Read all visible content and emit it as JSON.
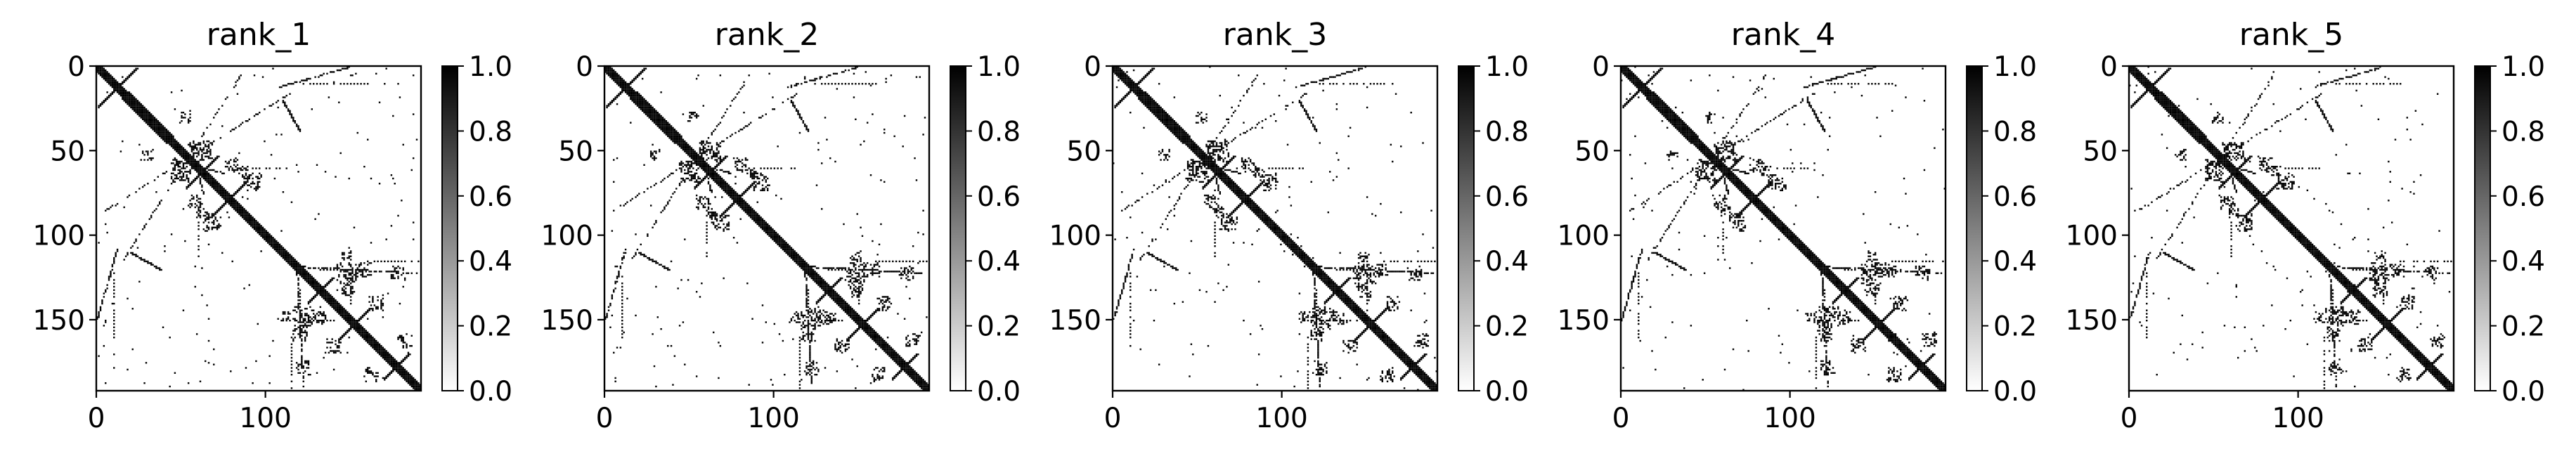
{
  "figure": {
    "background": "#ffffff",
    "axis_color": "#000000"
  },
  "chart_data": [
    {
      "type": "heatmap",
      "title": "rank_1",
      "xlim": [
        0,
        192
      ],
      "ylim": [
        192,
        0
      ],
      "xticks": [
        0,
        100
      ],
      "yticks": [
        0,
        50,
        100,
        150
      ],
      "xlabel": "",
      "ylabel": "",
      "colorbar": {
        "min": 0.0,
        "max": 1.0,
        "ticks": [
          "0.0",
          "0.2",
          "0.4",
          "0.6",
          "0.8",
          "1.0"
        ],
        "colormap": "gray_r"
      },
      "note": "binary contact map; cells near the diagonal and along cross-diagonal bands are 1, others 0"
    },
    {
      "type": "heatmap",
      "title": "rank_2",
      "xlim": [
        0,
        192
      ],
      "ylim": [
        192,
        0
      ],
      "xticks": [
        0,
        100
      ],
      "yticks": [
        0,
        50,
        100,
        150
      ],
      "xlabel": "",
      "ylabel": "",
      "colorbar": {
        "min": 0.0,
        "max": 1.0,
        "ticks": [
          "0.0",
          "0.2",
          "0.4",
          "0.6",
          "0.8",
          "1.0"
        ],
        "colormap": "gray_r"
      }
    },
    {
      "type": "heatmap",
      "title": "rank_3",
      "xlim": [
        0,
        192
      ],
      "ylim": [
        192,
        0
      ],
      "xticks": [
        0,
        100
      ],
      "yticks": [
        0,
        50,
        100,
        150
      ],
      "xlabel": "",
      "ylabel": "",
      "colorbar": {
        "min": 0.0,
        "max": 1.0,
        "ticks": [
          "0.0",
          "0.2",
          "0.4",
          "0.6",
          "0.8",
          "1.0"
        ],
        "colormap": "gray_r"
      }
    },
    {
      "type": "heatmap",
      "title": "rank_4",
      "xlim": [
        0,
        192
      ],
      "ylim": [
        192,
        0
      ],
      "xticks": [
        0,
        100
      ],
      "yticks": [
        0,
        50,
        100,
        150
      ],
      "xlabel": "",
      "ylabel": "",
      "colorbar": {
        "min": 0.0,
        "max": 1.0,
        "ticks": [
          "0.0",
          "0.2",
          "0.4",
          "0.6",
          "0.8",
          "1.0"
        ],
        "colormap": "gray_r"
      }
    },
    {
      "type": "heatmap",
      "title": "rank_5",
      "xlim": [
        0,
        192
      ],
      "ylim": [
        192,
        0
      ],
      "xticks": [
        0,
        100
      ],
      "yticks": [
        0,
        50,
        100,
        150
      ],
      "xlabel": "",
      "ylabel": "",
      "colorbar": {
        "min": 0.0,
        "max": 1.0,
        "ticks": [
          "0.0",
          "0.2",
          "0.4",
          "0.6",
          "0.8",
          "1.0"
        ],
        "colormap": "gray_r"
      }
    }
  ]
}
